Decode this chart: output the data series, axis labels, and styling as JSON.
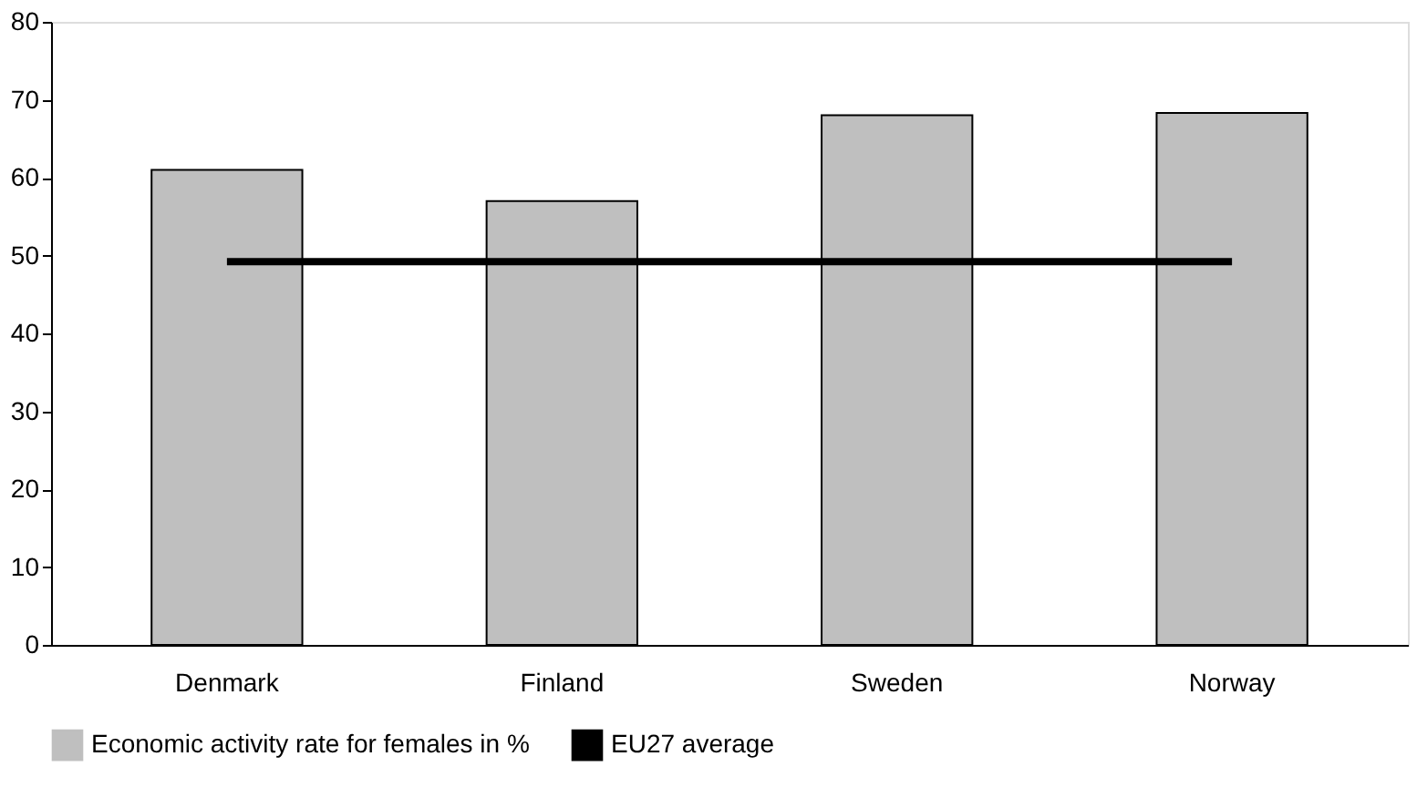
{
  "chart_data": {
    "type": "bar",
    "categories": [
      "Denmark",
      "Finland",
      "Sweden",
      "Norway"
    ],
    "series": [
      {
        "name": "Economic activity rate for females in %",
        "color": "#bfbfbf",
        "values": [
          61,
          57,
          68,
          68.3
        ]
      },
      {
        "name": "EU27 average",
        "type": "line",
        "color": "#000000",
        "values": [
          49.2,
          49.2,
          49.2,
          49.2
        ]
      }
    ],
    "ylim": [
      0,
      80
    ],
    "yticks": [
      0,
      10,
      20,
      30,
      40,
      50,
      60,
      70,
      80
    ],
    "grid": false,
    "legend": "bottom"
  }
}
